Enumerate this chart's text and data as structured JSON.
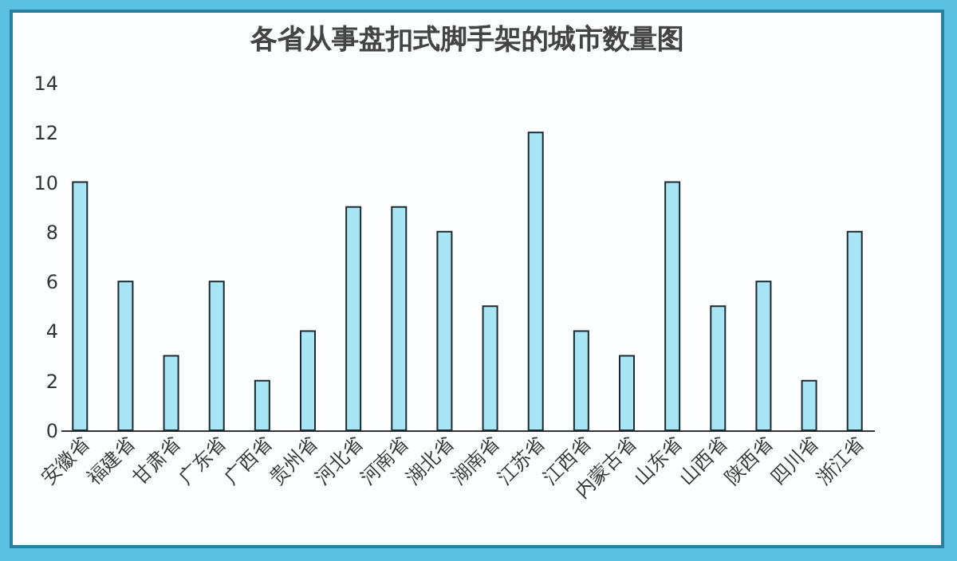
{
  "chart_data": {
    "type": "bar",
    "title": "各省从事盘扣式脚手架的城市数量图",
    "categories": [
      "安徽省",
      "福建省",
      "甘肃省",
      "广东省",
      "广西省",
      "贵州省",
      "河北省",
      "河南省",
      "湖北省",
      "湖南省",
      "江苏省",
      "江西省",
      "内蒙古省",
      "山东省",
      "山西省",
      "陕西省",
      "四川省",
      "浙江省"
    ],
    "values": [
      10,
      6,
      3,
      6,
      2,
      4,
      9,
      9,
      8,
      5,
      12,
      4,
      3,
      10,
      5,
      6,
      2,
      8
    ],
    "color": "#a8e6f5",
    "ylim": [
      0,
      14
    ],
    "yticks": [
      0,
      2,
      4,
      6,
      8,
      10,
      12,
      14
    ],
    "grid": false
  }
}
